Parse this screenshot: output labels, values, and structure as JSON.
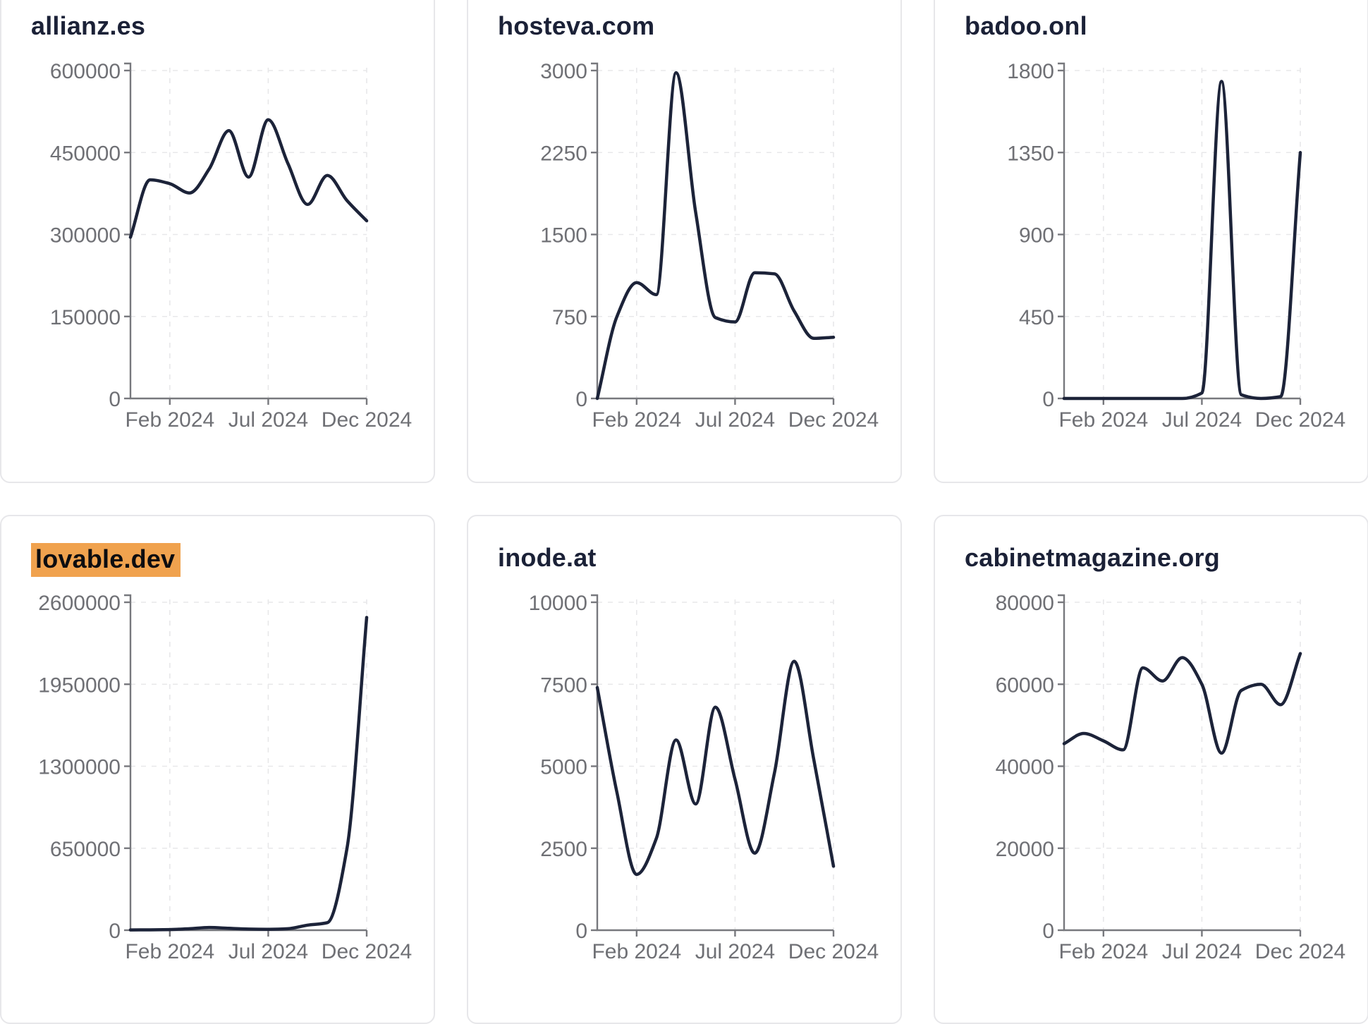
{
  "page": {
    "background": "#ffffff",
    "card_border_color": "#e7e7ea",
    "title_color": "#1b2137",
    "highlight_color": "#f0a24e",
    "axis_color": "#77787d",
    "grid_color": "#e8e8ea",
    "tick_label_color": "#6f7075",
    "series_line_color": "#1c2339"
  },
  "chart_data": [
    {
      "type": "line",
      "title": "allianz.es",
      "title_highlighted": false,
      "x_ticks": [
        {
          "label": "Feb 2024",
          "point_index": 2
        },
        {
          "label": "Jul 2024",
          "point_index": 7
        },
        {
          "label": "Dec 2024",
          "point_index": 12
        }
      ],
      "y_ticks": [
        0,
        150000,
        300000,
        450000,
        600000
      ],
      "ylim": [
        0,
        600000
      ],
      "grid": true,
      "values": [
        295000,
        400000,
        393000,
        376000,
        420000,
        490000,
        405000,
        510000,
        430000,
        355000,
        408000,
        362000,
        325000
      ]
    },
    {
      "type": "line",
      "title": "hosteva.com",
      "title_highlighted": false,
      "x_ticks": [
        {
          "label": "Feb 2024",
          "point_index": 2
        },
        {
          "label": "Jul 2024",
          "point_index": 7
        },
        {
          "label": "Dec 2024",
          "point_index": 12
        }
      ],
      "y_ticks": [
        0,
        750,
        1500,
        2250,
        3000
      ],
      "ylim": [
        0,
        3000
      ],
      "grid": true,
      "values": [
        0,
        750,
        1060,
        950,
        2980,
        1700,
        740,
        700,
        1150,
        1140,
        800,
        550,
        560
      ]
    },
    {
      "type": "line",
      "title": "badoo.onl",
      "title_highlighted": false,
      "x_ticks": [
        {
          "label": "Feb 2024",
          "point_index": 2
        },
        {
          "label": "Jul 2024",
          "point_index": 7
        },
        {
          "label": "Dec 2024",
          "point_index": 12
        }
      ],
      "y_ticks": [
        0,
        450,
        900,
        1350,
        1800
      ],
      "ylim": [
        0,
        1800
      ],
      "grid": true,
      "values": [
        0,
        0,
        0,
        0,
        0,
        0,
        0,
        30,
        1740,
        20,
        0,
        10,
        1350
      ]
    },
    {
      "type": "line",
      "title": "lovable.dev",
      "title_highlighted": true,
      "x_ticks": [
        {
          "label": "Feb 2024",
          "point_index": 2
        },
        {
          "label": "Jul 2024",
          "point_index": 7
        },
        {
          "label": "Dec 2024",
          "point_index": 12
        }
      ],
      "y_ticks": [
        0,
        650000,
        1300000,
        1950000,
        2600000
      ],
      "ylim": [
        0,
        2600000
      ],
      "grid": true,
      "values": [
        2000,
        3000,
        5000,
        12000,
        22000,
        15000,
        9000,
        7000,
        12000,
        40000,
        60000,
        650000,
        2480000
      ]
    },
    {
      "type": "line",
      "title": "inode.at",
      "title_highlighted": false,
      "x_ticks": [
        {
          "label": "Feb 2024",
          "point_index": 2
        },
        {
          "label": "Jul 2024",
          "point_index": 7
        },
        {
          "label": "Dec 2024",
          "point_index": 12
        }
      ],
      "y_ticks": [
        0,
        2500,
        5000,
        7500,
        10000
      ],
      "ylim": [
        0,
        10000
      ],
      "grid": true,
      "values": [
        7400,
        4200,
        1700,
        2800,
        5800,
        3850,
        6800,
        4600,
        2350,
        4800,
        8200,
        5200,
        1950
      ]
    },
    {
      "type": "line",
      "title": "cabinetmagazine.org",
      "title_highlighted": false,
      "x_ticks": [
        {
          "label": "Feb 2024",
          "point_index": 2
        },
        {
          "label": "Jul 2024",
          "point_index": 7
        },
        {
          "label": "Dec 2024",
          "point_index": 12
        }
      ],
      "y_ticks": [
        0,
        20000,
        40000,
        60000,
        80000
      ],
      "ylim": [
        0,
        80000
      ],
      "grid": true,
      "values": [
        45500,
        48000,
        46200,
        44000,
        64000,
        60800,
        66500,
        60000,
        43200,
        58500,
        60000,
        55000,
        67500
      ]
    }
  ]
}
